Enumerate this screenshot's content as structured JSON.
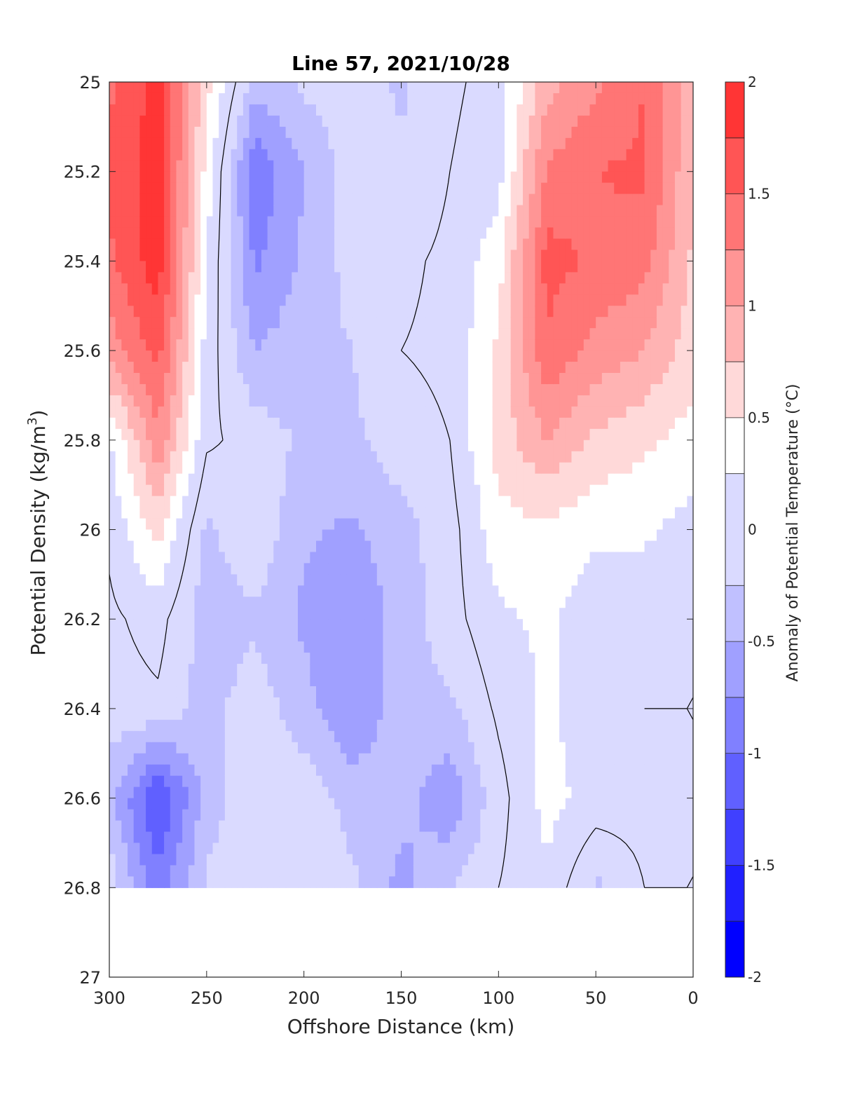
{
  "chart_data": {
    "type": "heatmap",
    "subtype": "filled-contour",
    "title": "Line 57, 2021/10/28",
    "xlabel": "Offshore Distance (km)",
    "ylabel_main": "Potential Density (kg/m",
    "ylabel_sup": "3",
    "ylabel_close": ")",
    "colorbar_label": "Anomaly of Potential Temperature (°C)",
    "x_reversed": true,
    "y_reversed": true,
    "xlim": [
      0,
      300
    ],
    "ylim": [
      25,
      27
    ],
    "x_ticks": [
      300,
      250,
      200,
      150,
      100,
      50,
      0
    ],
    "x_tick_labels": [
      "300",
      "250",
      "200",
      "150",
      "100",
      "50",
      "0"
    ],
    "y_ticks": [
      25,
      25.2,
      25.4,
      25.6,
      25.8,
      26,
      26.2,
      26.4,
      26.6,
      26.8,
      27
    ],
    "y_tick_labels": [
      "25",
      "25.2",
      "25.4",
      "25.6",
      "25.8",
      "26",
      "26.2",
      "26.4",
      "26.6",
      "26.8",
      "27"
    ],
    "clim": [
      -2,
      2
    ],
    "colorbar_ticks": [
      -2,
      -1.5,
      -1,
      -0.5,
      0,
      0.5,
      1,
      1.5,
      2
    ],
    "colorbar_tick_labels": [
      "-2",
      "-1.5",
      "-1",
      "-0.5",
      "0",
      "0.5",
      "1",
      "1.5",
      "2"
    ],
    "contour_levels": [
      -2,
      -1.75,
      -1.5,
      -1.25,
      -1,
      -0.75,
      -0.5,
      -0.25,
      0.25,
      0.5,
      0.75,
      1,
      1.25,
      1.5,
      1.75,
      2
    ],
    "colormap": [
      "#0000ff",
      "#2020ff",
      "#4040ff",
      "#6060ff",
      "#8080ff",
      "#a0a0ff",
      "#c0c0ff",
      "#dadaff",
      "#ffffff",
      "#ffd9d9",
      "#ffb3b3",
      "#ff9595",
      "#ff7575",
      "#ff5555",
      "#ff3535",
      "#ff0000"
    ],
    "field_x": [
      300,
      275,
      250,
      225,
      200,
      175,
      150,
      125,
      100,
      75,
      50,
      25,
      0
    ],
    "field_y": [
      25.0,
      25.2,
      25.4,
      25.6,
      25.8,
      26.0,
      26.2,
      26.4,
      26.6,
      26.8
    ],
    "field_anomaly": [
      [
        1.45,
        1.85,
        0.6,
        -0.4,
        -0.2,
        -0.1,
        -0.3,
        -0.05,
        0.1,
        0.9,
        1.2,
        1.5,
        0.8
      ],
      [
        1.55,
        1.9,
        0.4,
        -0.95,
        -0.5,
        -0.1,
        -0.2,
        0.0,
        0.15,
        1.3,
        1.5,
        1.55,
        0.75
      ],
      [
        1.45,
        1.9,
        0.25,
        -0.8,
        -0.45,
        -0.15,
        -0.05,
        0.05,
        0.4,
        1.6,
        1.45,
        1.35,
        0.7
      ],
      [
        1.1,
        1.6,
        0.15,
        -0.5,
        -0.35,
        -0.25,
        0.0,
        0.05,
        0.55,
        1.45,
        1.15,
        1.0,
        0.6
      ],
      [
        0.2,
        1.2,
        0.05,
        -0.1,
        -0.3,
        -0.3,
        -0.1,
        0.0,
        0.6,
        1.0,
        0.7,
        0.55,
        0.4
      ],
      [
        0.05,
        0.6,
        -0.3,
        -0.05,
        -0.45,
        -0.55,
        -0.35,
        -0.1,
        0.4,
        0.45,
        0.3,
        0.3,
        0.15
      ],
      [
        -0.05,
        0.1,
        -0.4,
        -0.3,
        -0.55,
        -0.7,
        -0.4,
        -0.1,
        0.2,
        0.3,
        0.1,
        0.05,
        0.0
      ],
      [
        -0.1,
        -0.05,
        -0.35,
        -0.1,
        -0.4,
        -0.75,
        -0.35,
        -0.3,
        0.05,
        0.3,
        0.05,
        0.0,
        0.0
      ],
      [
        -0.4,
        -1.3,
        -0.4,
        -0.05,
        -0.1,
        -0.35,
        -0.4,
        -0.7,
        -0.1,
        0.35,
        0.15,
        0.1,
        0.0
      ],
      [
        -0.1,
        -0.9,
        -0.2,
        0.0,
        0.0,
        -0.2,
        -0.6,
        -0.25,
        0.0,
        0.2,
        -0.3,
        0.0,
        0.0
      ]
    ]
  }
}
